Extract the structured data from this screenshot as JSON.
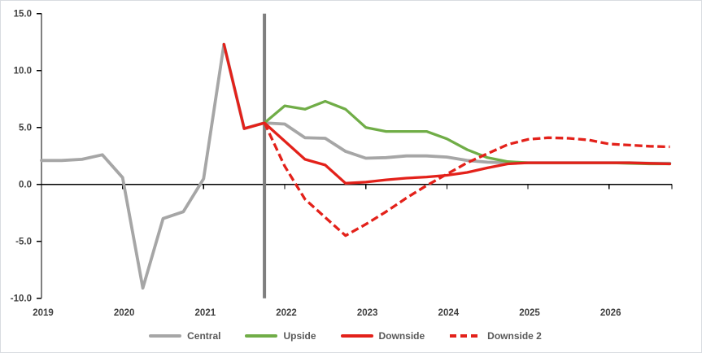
{
  "chart": {
    "background": "#FFFFFF",
    "border_color": "#D9DCE1",
    "axis_color": "#000000",
    "tick_label_color": "#404040",
    "legend_text_color": "#595959",
    "forecast_divider_color": "#7F7F7F"
  },
  "chart_data": {
    "type": "line",
    "title": "",
    "xlabel": "",
    "ylabel": "",
    "grid": false,
    "legend_position": "bottom",
    "x_step_years": 0.25,
    "x_range": [
      2019,
      2026.75
    ],
    "ylim": [
      -10,
      15
    ],
    "y_axis": {
      "tick_labels": [
        "15.0",
        "10.0",
        "5.0",
        "0.0",
        "-5.0",
        "-10.0"
      ]
    },
    "x_axis": {
      "tick_labels": [
        "2019",
        "2020",
        "2021",
        "2022",
        "2023",
        "2024",
        "2025",
        "2026"
      ]
    },
    "forecast_divider_x": 2021.75,
    "series": [
      {
        "name": "Central",
        "color": "#A6A6A6",
        "style": "solid",
        "x_start": 2019.0,
        "values": [
          2.1,
          2.1,
          2.2,
          2.6,
          0.6,
          -9.1,
          -3.0,
          -2.4,
          0.5,
          12.3,
          4.9,
          5.4,
          5.3,
          4.1,
          4.05,
          2.9,
          2.3,
          2.35,
          2.5,
          2.5,
          2.4,
          2.1,
          1.95,
          1.9,
          1.9,
          1.9,
          1.9,
          1.9,
          1.9,
          1.9,
          1.85,
          1.85
        ]
      },
      {
        "name": "Upside",
        "color": "#70AD47",
        "style": "solid",
        "x_start": 2021.75,
        "values": [
          5.4,
          6.9,
          6.6,
          7.3,
          6.6,
          5.0,
          4.65,
          4.65,
          4.65,
          4.0,
          3.05,
          2.35,
          2.0,
          1.9,
          1.9,
          1.9,
          1.9,
          1.9,
          1.85,
          1.8,
          1.8
        ]
      },
      {
        "name": "Downside",
        "color": "#E3211A",
        "style": "solid",
        "x_start": 2021.25,
        "values": [
          12.3,
          4.9,
          5.4,
          3.8,
          2.2,
          1.7,
          0.1,
          0.2,
          0.4,
          0.55,
          0.65,
          0.8,
          1.05,
          1.45,
          1.8,
          1.9,
          1.9,
          1.9,
          1.9,
          1.9,
          1.9,
          1.85,
          1.8
        ]
      },
      {
        "name": "Downside 2",
        "color": "#E3211A",
        "style": "dashed",
        "x_start": 2021.75,
        "values": [
          5.4,
          1.6,
          -1.3,
          -2.9,
          -4.5,
          -3.5,
          -2.4,
          -1.2,
          -0.1,
          0.9,
          1.9,
          2.7,
          3.5,
          3.95,
          4.1,
          4.05,
          3.9,
          3.55,
          3.45,
          3.35,
          3.3
        ]
      }
    ],
    "legend": {
      "items": [
        "Central",
        "Upside",
        "Downside",
        "Downside 2"
      ]
    }
  }
}
